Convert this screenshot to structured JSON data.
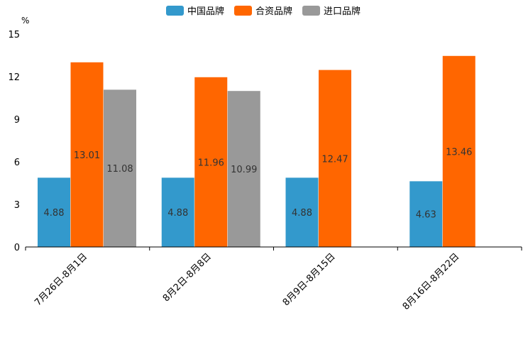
{
  "chart_data": {
    "type": "bar",
    "title": "",
    "unit": "%",
    "xlabel": "",
    "ylabel": "%",
    "ylim": [
      0,
      15
    ],
    "yticks": [
      0,
      3,
      6,
      9,
      12,
      15
    ],
    "grid": false,
    "legend_position": "top-center",
    "categories": [
      "7月26日-8月1日",
      "8月2日-8月8日",
      "8月9日-8月15日",
      "8月16日-8月22日"
    ],
    "series": [
      {
        "name": "中国品牌",
        "color": "#3399cc",
        "values": [
          4.88,
          4.88,
          4.88,
          4.63
        ],
        "labels": [
          "4.88",
          "4.88",
          "4.88",
          "4.63"
        ]
      },
      {
        "name": "合资品牌",
        "color": "#ff6600",
        "values": [
          13.01,
          11.96,
          12.47,
          13.46
        ],
        "labels": [
          "13.01",
          "11.96",
          "12.47",
          "13.46"
        ]
      },
      {
        "name": "进口品牌",
        "color": "#999999",
        "values": [
          11.08,
          10.99,
          null,
          null
        ],
        "labels": [
          "11.08",
          "10.99",
          null,
          null
        ]
      }
    ]
  }
}
